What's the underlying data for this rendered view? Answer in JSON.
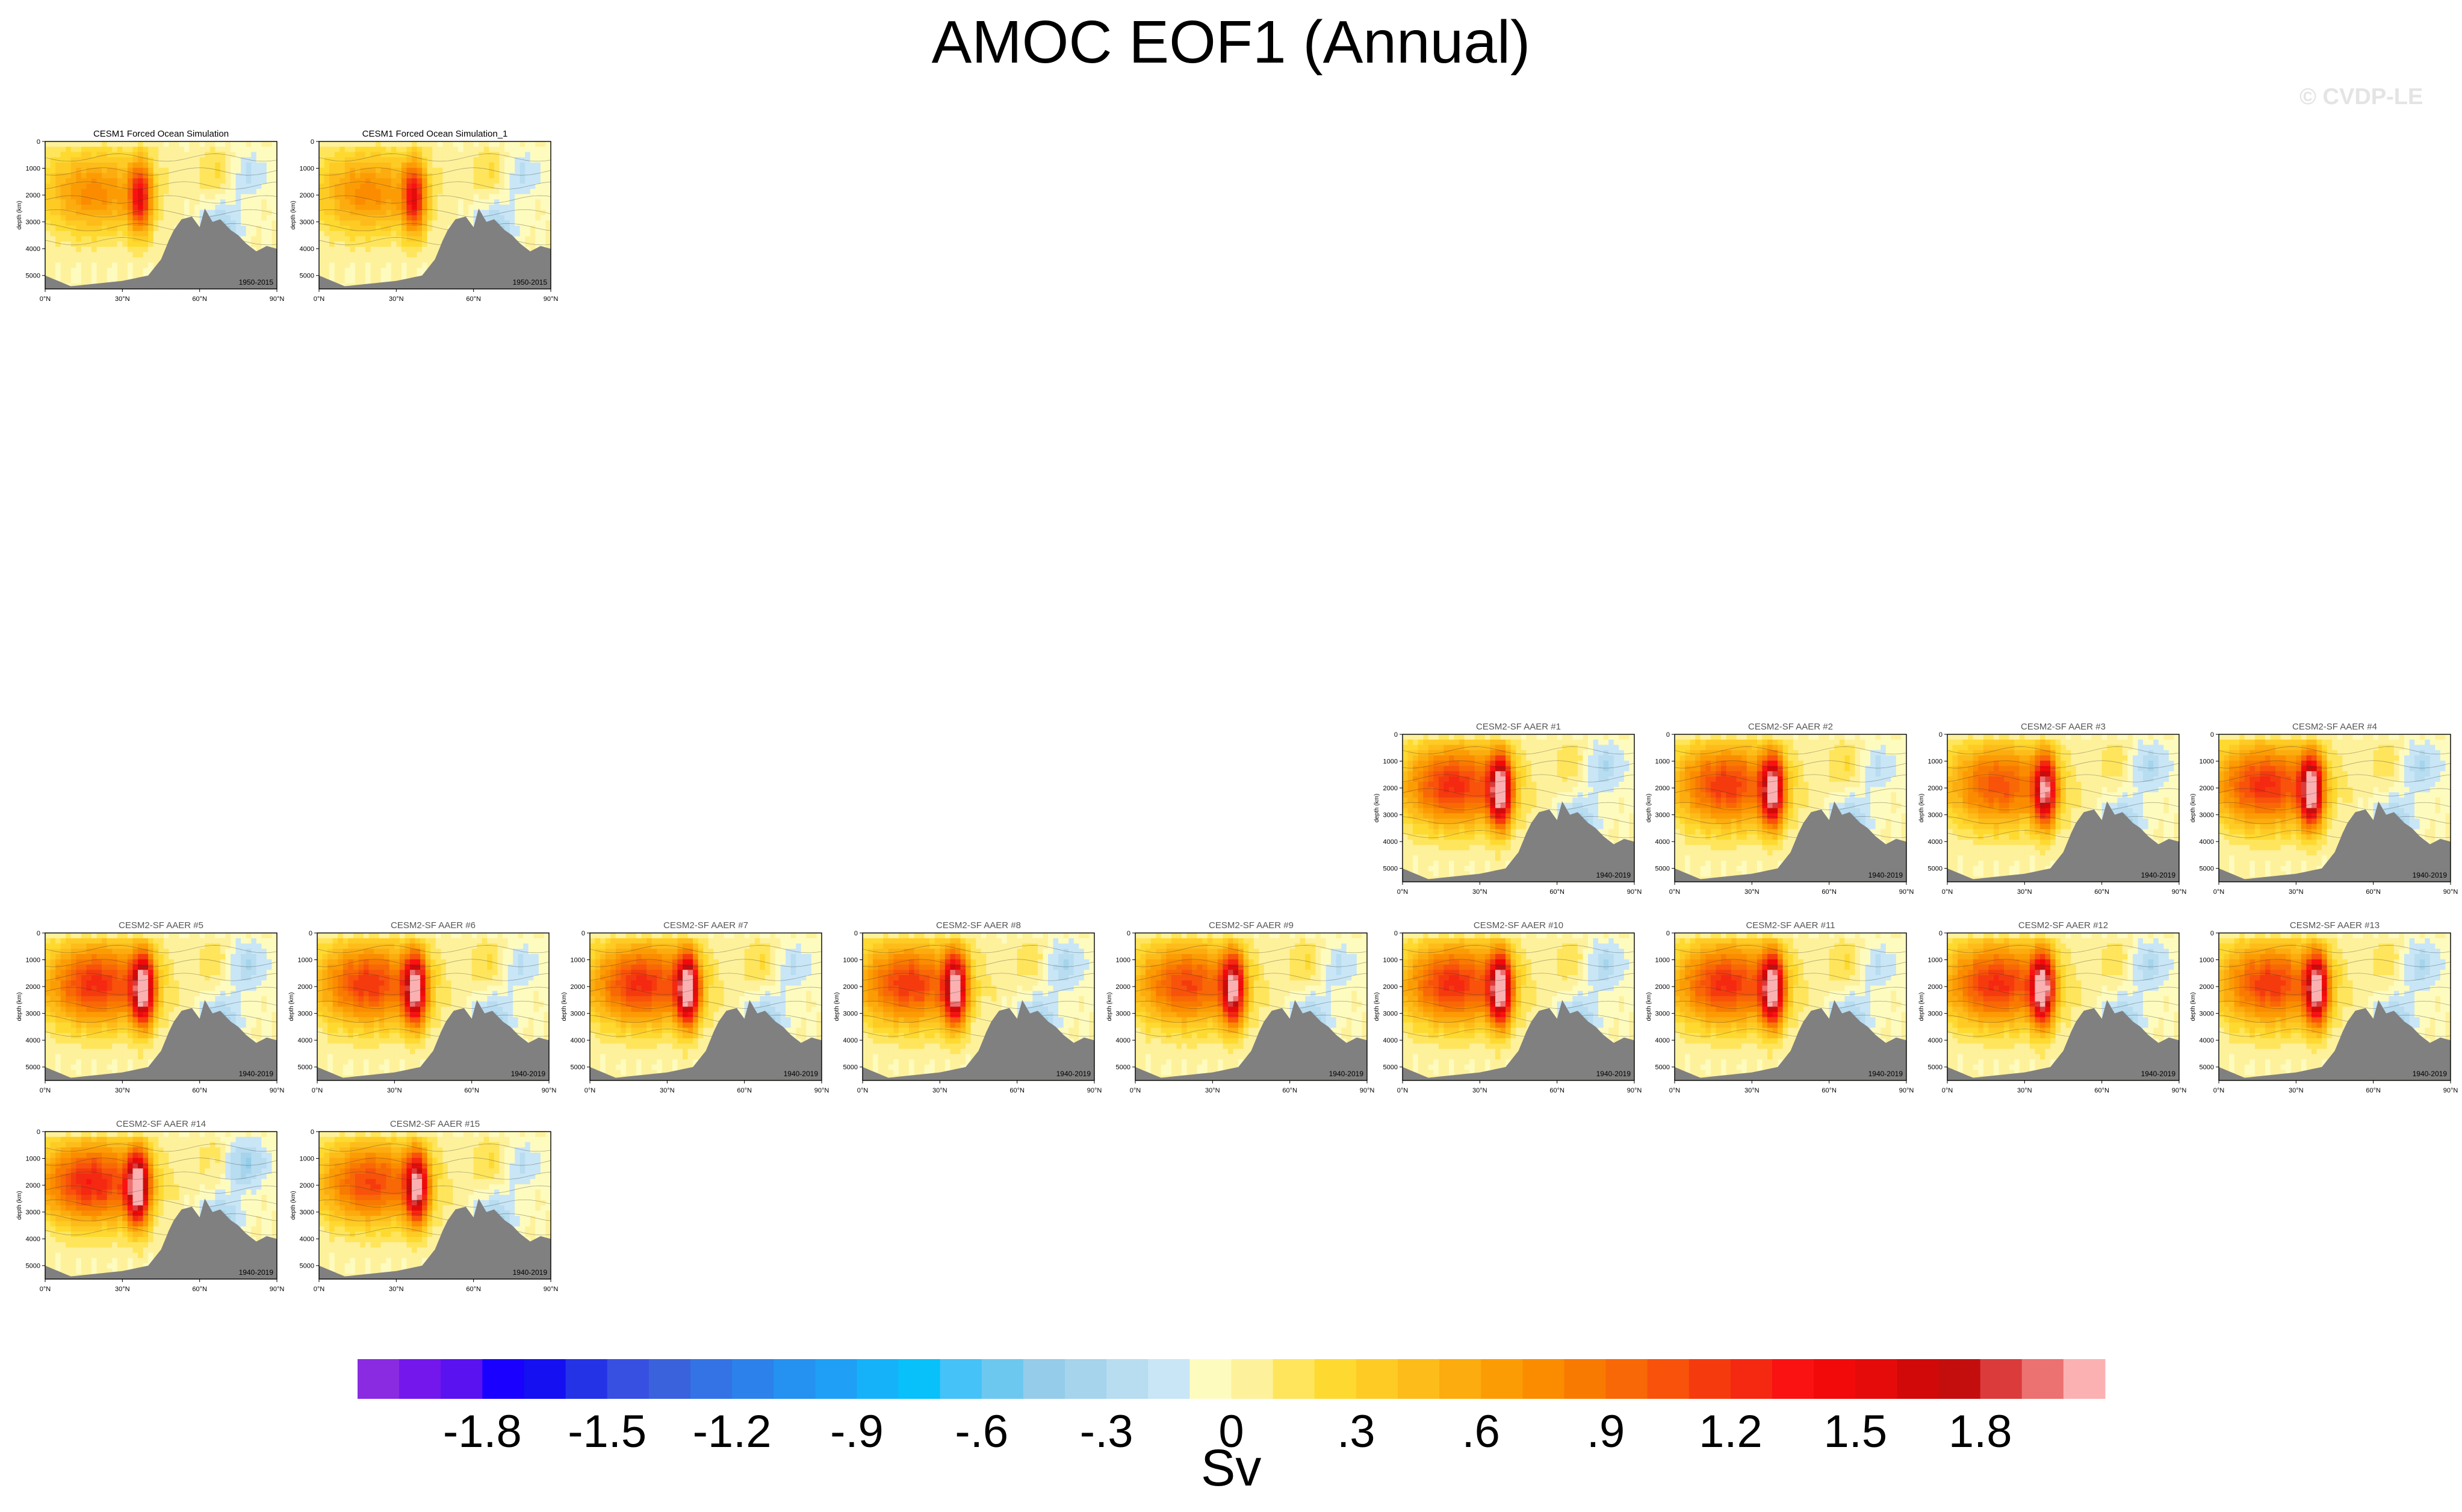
{
  "title": "AMOC EOF1 (Annual)",
  "watermark": "© CVDP-LE",
  "colors": {
    "land": "#808080",
    "levels": [
      "#8a2be2",
      "#7417ec",
      "#5a12f0",
      "#1a00ff",
      "#1410f2",
      "#2433e6",
      "#3750e2",
      "#3a62dc",
      "#3373e6",
      "#2c82ea",
      "#2591f0",
      "#1f9ff5",
      "#15b2fa",
      "#08c1fb",
      "#45c2f7",
      "#6dc8f0",
      "#94cce9",
      "#a5d4ec",
      "#b8dcf0",
      "#c9e6f6",
      "#fefbbf",
      "#fef19b",
      "#fee55c",
      "#fed930",
      "#fecb25",
      "#fdbc1a",
      "#fcac0e",
      "#fc9c05",
      "#fb8c00",
      "#f97a00",
      "#f86806",
      "#f8520b",
      "#f53b0e",
      "#f52811",
      "#fa1212",
      "#f20a0a",
      "#e50b0b",
      "#d20909",
      "#c40e0e",
      "#db3b3b",
      "#ec7171",
      "#fbb1b1"
    ]
  },
  "chart_data": {
    "type": "heatmap",
    "colorbar": {
      "ticks": [
        "-1.8",
        "-1.5",
        "-1.2",
        "-.9",
        "-.6",
        "-.3",
        "0",
        ".3",
        ".6",
        ".9",
        "1.2",
        "1.5",
        "1.8"
      ],
      "label": "Sv",
      "range": [
        -2.1,
        2.1
      ]
    },
    "panel_axes": {
      "y_ticks": [
        "0",
        "1000",
        "2000",
        "3000",
        "4000",
        "5000"
      ],
      "ylabel": "depth (km)",
      "x_ticks": [
        "0°N",
        "30°N",
        "60°N",
        "90°N"
      ],
      "ylim": [
        5500,
        0
      ],
      "xlim": [
        0,
        90
      ]
    },
    "panels": [
      {
        "title": "CESM1 Forced Ocean Simulation",
        "period": "1950-2015",
        "peak": 1.2,
        "cell_lat": 37,
        "min": -0.3,
        "title_color": "#000000"
      },
      {
        "title": "CESM1 Forced Ocean Simulation_1",
        "period": "1950-2015",
        "peak": 1.2,
        "cell_lat": 37,
        "min": -0.3,
        "title_color": "#000000"
      },
      {
        "title": "CESM2-SF AAER #1",
        "period": "1940-2019",
        "peak": 2.0,
        "cell_lat": 38,
        "min": -0.4,
        "title_color": "#555555"
      },
      {
        "title": "CESM2-SF AAER #2",
        "period": "1940-2019",
        "peak": 1.9,
        "cell_lat": 38,
        "min": -0.3,
        "title_color": "#555555"
      },
      {
        "title": "CESM2-SF AAER #3",
        "period": "1940-2019",
        "peak": 1.7,
        "cell_lat": 38,
        "min": -0.4,
        "title_color": "#555555"
      },
      {
        "title": "CESM2-SF AAER #4",
        "period": "1940-2019",
        "peak": 2.0,
        "cell_lat": 36,
        "min": -0.4,
        "title_color": "#555555"
      },
      {
        "title": "CESM2-SF AAER #5",
        "period": "1940-2019",
        "peak": 2.0,
        "cell_lat": 38,
        "min": -0.4,
        "title_color": "#555555"
      },
      {
        "title": "CESM2-SF AAER #6",
        "period": "1940-2019",
        "peak": 1.9,
        "cell_lat": 38,
        "min": -0.3,
        "title_color": "#555555"
      },
      {
        "title": "CESM2-SF AAER #7",
        "period": "1940-2019",
        "peak": 2.0,
        "cell_lat": 38,
        "min": -0.3,
        "title_color": "#555555"
      },
      {
        "title": "CESM2-SF AAER #8",
        "period": "1940-2019",
        "peak": 1.9,
        "cell_lat": 36,
        "min": -0.4,
        "title_color": "#555555"
      },
      {
        "title": "CESM2-SF AAER #9",
        "period": "1940-2019",
        "peak": 1.8,
        "cell_lat": 38,
        "min": -0.3,
        "title_color": "#555555"
      },
      {
        "title": "CESM2-SF AAER #10",
        "period": "1940-2019",
        "peak": 2.0,
        "cell_lat": 38,
        "min": -0.4,
        "title_color": "#555555"
      },
      {
        "title": "CESM2-SF AAER #11",
        "period": "1940-2019",
        "peak": 2.0,
        "cell_lat": 38,
        "min": -0.3,
        "title_color": "#555555"
      },
      {
        "title": "CESM2-SF AAER #12",
        "period": "1940-2019",
        "peak": 2.0,
        "cell_lat": 37,
        "min": -0.4,
        "title_color": "#555555"
      },
      {
        "title": "CESM2-SF AAER #13",
        "period": "1940-2019",
        "peak": 1.9,
        "cell_lat": 38,
        "min": -0.4,
        "title_color": "#555555"
      },
      {
        "title": "CESM2-SF AAER #14",
        "period": "1940-2019",
        "peak": 2.1,
        "cell_lat": 36,
        "min": -0.5,
        "title_color": "#555555"
      },
      {
        "title": "CESM2-SF AAER #15",
        "period": "1940-2019",
        "peak": 1.8,
        "cell_lat": 38,
        "min": -0.3,
        "title_color": "#555555"
      }
    ]
  }
}
